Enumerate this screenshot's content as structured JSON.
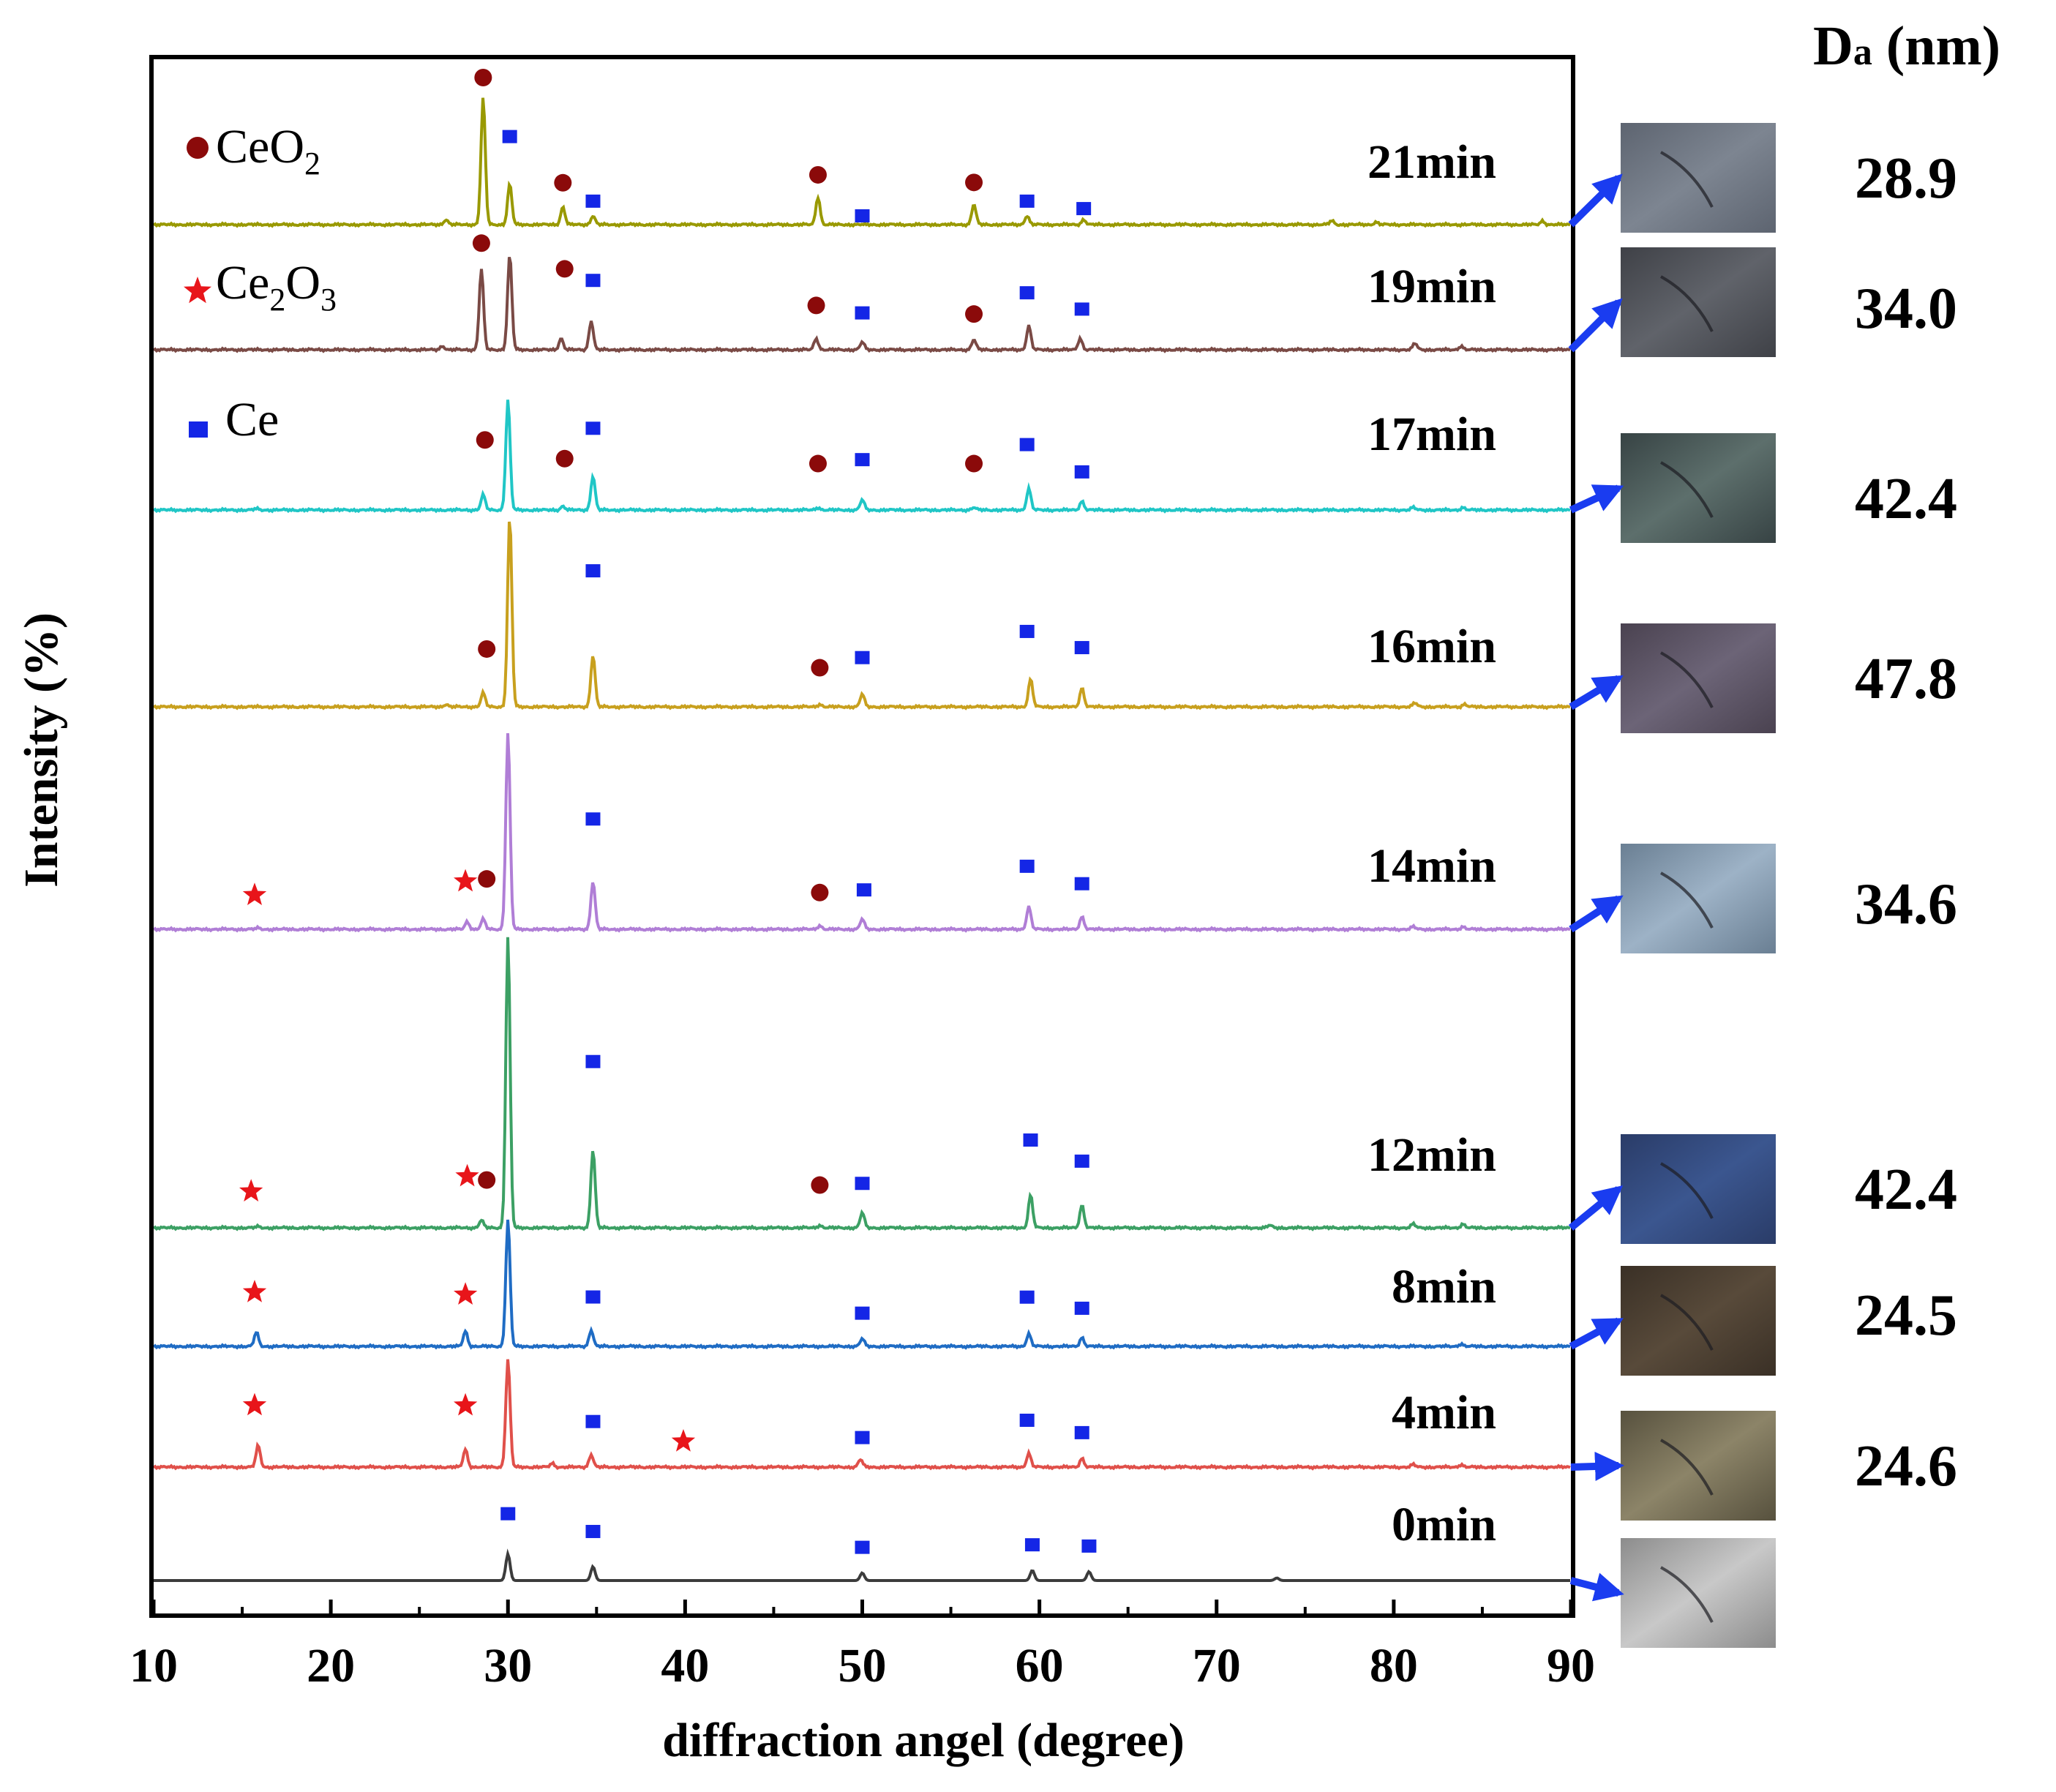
{
  "chart_data": {
    "type": "line",
    "xlabel": "diffraction angel (degree)",
    "ylabel": "Intensity (%)",
    "xlim": [
      10,
      90
    ],
    "xticks": [
      10,
      20,
      30,
      40,
      50,
      60,
      70,
      80,
      90
    ],
    "da_header": {
      "main": "D",
      "sub": "a",
      "unit": " (nm)"
    },
    "legend": [
      {
        "label": "CeO",
        "sub": "2",
        "marker": "circle",
        "color": "#8b0a0a"
      },
      {
        "label": "Ce",
        "sub": "2",
        "label2": "O",
        "sub2": "3",
        "marker": "star",
        "color": "#e8151a"
      },
      {
        "label": "Ce",
        "marker": "square",
        "color": "#1426e6"
      }
    ],
    "series": [
      {
        "name": "21min",
        "color": "#999900",
        "da": "28.9",
        "swatch": [
          "#5d6470",
          "#7d8591"
        ],
        "peaks": [
          [
            26.5,
            0.04
          ],
          [
            28.6,
            1.0
          ],
          [
            30.1,
            0.32
          ],
          [
            33.1,
            0.14
          ],
          [
            34.8,
            0.07
          ],
          [
            47.5,
            0.22
          ],
          [
            56.3,
            0.16
          ],
          [
            59.3,
            0.07
          ],
          [
            62.5,
            0.04
          ],
          [
            76.5,
            0.03
          ],
          [
            79.0,
            0.02
          ],
          [
            88.4,
            0.03
          ]
        ],
        "markers": [
          [
            "circle",
            28.6
          ],
          [
            "square",
            30.1
          ],
          [
            "circle",
            33.1
          ],
          [
            "square",
            34.8
          ],
          [
            "circle",
            47.5
          ],
          [
            "square",
            50.0
          ],
          [
            "circle",
            56.3
          ],
          [
            "square",
            59.3
          ],
          [
            "square",
            62.5
          ]
        ]
      },
      {
        "name": "19min",
        "color": "#7a4a45",
        "da": "34.0",
        "swatch": [
          "#3f4147",
          "#60636a"
        ],
        "peaks": [
          [
            26.3,
            0.03
          ],
          [
            28.5,
            0.64
          ],
          [
            30.1,
            0.75
          ],
          [
            33.0,
            0.09
          ],
          [
            34.7,
            0.23
          ],
          [
            47.4,
            0.09
          ],
          [
            50.0,
            0.06
          ],
          [
            56.3,
            0.08
          ],
          [
            59.4,
            0.19
          ],
          [
            62.3,
            0.09
          ],
          [
            81.2,
            0.05
          ],
          [
            83.8,
            0.03
          ]
        ],
        "markers": [
          [
            "circle",
            28.5
          ],
          [
            "circle",
            33.2
          ],
          [
            "square",
            34.8
          ],
          [
            "circle",
            47.4
          ],
          [
            "square",
            50.0
          ],
          [
            "circle",
            56.3
          ],
          [
            "square",
            59.3
          ],
          [
            "square",
            62.4
          ]
        ]
      },
      {
        "name": "17min",
        "color": "#20c6c6",
        "da": "42.4",
        "swatch": [
          "#374344",
          "#5d6f6c"
        ],
        "peaks": [
          [
            15.8,
            0.01
          ],
          [
            28.6,
            0.12
          ],
          [
            30.0,
            0.87
          ],
          [
            33.1,
            0.03
          ],
          [
            34.8,
            0.27
          ],
          [
            47.5,
            0.02
          ],
          [
            50.0,
            0.08
          ],
          [
            56.3,
            0.02
          ],
          [
            59.4,
            0.17
          ],
          [
            62.4,
            0.07
          ],
          [
            81.1,
            0.02
          ],
          [
            83.9,
            0.02
          ]
        ],
        "markers": [
          [
            "circle",
            28.7
          ],
          [
            "circle",
            33.2
          ],
          [
            "square",
            34.8
          ],
          [
            "circle",
            47.5
          ],
          [
            "square",
            50.0
          ],
          [
            "circle",
            56.3
          ],
          [
            "square",
            59.3
          ],
          [
            "square",
            62.4
          ]
        ]
      },
      {
        "name": "16min",
        "color": "#c8a01e",
        "da": "47.8",
        "swatch": [
          "#4a4250",
          "#6c6477"
        ],
        "peaks": [
          [
            26.5,
            0.02
          ],
          [
            28.6,
            0.11
          ],
          [
            30.1,
            1.5
          ],
          [
            34.8,
            0.41
          ],
          [
            47.6,
            0.02
          ],
          [
            50.0,
            0.1
          ],
          [
            59.5,
            0.22
          ],
          [
            62.4,
            0.15
          ],
          [
            81.2,
            0.03
          ],
          [
            84.0,
            0.02
          ]
        ],
        "markers": [
          [
            "circle",
            28.8
          ],
          [
            "square",
            34.8
          ],
          [
            "circle",
            47.6
          ],
          [
            "square",
            50.0
          ],
          [
            "square",
            59.3
          ],
          [
            "square",
            62.4
          ]
        ]
      },
      {
        "name": "14min",
        "color": "#b07ed6",
        "da": "34.6",
        "swatch": [
          "#6a7f93",
          "#9db2c6"
        ],
        "peaks": [
          [
            15.9,
            0.01
          ],
          [
            27.7,
            0.06
          ],
          [
            28.6,
            0.08
          ],
          [
            30.0,
            1.55
          ],
          [
            34.8,
            0.38
          ],
          [
            47.6,
            0.03
          ],
          [
            50.0,
            0.08
          ],
          [
            59.4,
            0.18
          ],
          [
            62.4,
            0.1
          ],
          [
            81.1,
            0.02
          ],
          [
            83.9,
            0.02
          ]
        ],
        "markers": [
          [
            "star",
            15.7
          ],
          [
            "star",
            27.6
          ],
          [
            "circle",
            28.8
          ],
          [
            "square",
            34.8
          ],
          [
            "circle",
            47.6
          ],
          [
            "square",
            50.1
          ],
          [
            "square",
            59.3
          ],
          [
            "square",
            62.4
          ]
        ]
      },
      {
        "name": "12min",
        "color": "#3ca064",
        "da": "42.4",
        "swatch": [
          "#2a3c68",
          "#3b568f"
        ],
        "peaks": [
          [
            15.9,
            0.01
          ],
          [
            28.5,
            0.06
          ],
          [
            30.0,
            2.3
          ],
          [
            34.8,
            0.62
          ],
          [
            47.6,
            0.02
          ],
          [
            50.0,
            0.12
          ],
          [
            59.5,
            0.26
          ],
          [
            62.4,
            0.18
          ],
          [
            73.0,
            0.02
          ],
          [
            81.1,
            0.03
          ],
          [
            83.9,
            0.03
          ]
        ],
        "markers": [
          [
            "star",
            15.5
          ],
          [
            "star",
            27.7
          ],
          [
            "circle",
            28.8
          ],
          [
            "square",
            34.8
          ],
          [
            "circle",
            47.6
          ],
          [
            "square",
            50.0
          ],
          [
            "square",
            59.5
          ],
          [
            "square",
            62.4
          ]
        ]
      },
      {
        "name": "8min",
        "color": "#1f6cc4",
        "da": "24.5",
        "swatch": [
          "#3a3026",
          "#584a3a"
        ],
        "peaks": [
          [
            15.8,
            0.11
          ],
          [
            27.6,
            0.12
          ],
          [
            30.0,
            1.0
          ],
          [
            34.7,
            0.13
          ],
          [
            50.0,
            0.06
          ],
          [
            59.4,
            0.1
          ],
          [
            62.4,
            0.07
          ],
          [
            83.8,
            0.02
          ]
        ],
        "markers": [
          [
            "star",
            15.7
          ],
          [
            "star",
            27.6
          ],
          [
            "square",
            34.8
          ],
          [
            "square",
            50.0
          ],
          [
            "square",
            59.3
          ],
          [
            "square",
            62.4
          ]
        ]
      },
      {
        "name": "4min",
        "color": "#e0504a",
        "da": "24.6",
        "swatch": [
          "#57513e",
          "#8c8468"
        ],
        "peaks": [
          [
            15.9,
            0.17
          ],
          [
            27.6,
            0.14
          ],
          [
            30.0,
            0.85
          ],
          [
            32.5,
            0.03
          ],
          [
            34.7,
            0.1
          ],
          [
            49.9,
            0.06
          ],
          [
            59.4,
            0.11
          ],
          [
            62.4,
            0.07
          ],
          [
            81.1,
            0.02
          ],
          [
            83.8,
            0.02
          ]
        ],
        "markers": [
          [
            "star",
            15.7
          ],
          [
            "star",
            27.6
          ],
          [
            "square",
            34.8
          ],
          [
            "star",
            39.9
          ],
          [
            "square",
            50.0
          ],
          [
            "square",
            59.3
          ],
          [
            "square",
            62.4
          ]
        ]
      },
      {
        "name": "0min",
        "color": "#3c3c3c",
        "da": "",
        "swatch": [
          "#8c8c8c",
          "#c8c8c8"
        ],
        "peaks": [
          [
            30.0,
            0.21
          ],
          [
            34.8,
            0.11
          ],
          [
            50.0,
            0.06
          ],
          [
            59.6,
            0.08
          ],
          [
            62.8,
            0.07
          ],
          [
            73.4,
            0.02
          ]
        ],
        "markers": [
          [
            "square",
            30.0
          ],
          [
            "square",
            34.8
          ],
          [
            "square",
            50.0
          ],
          [
            "square",
            59.6
          ],
          [
            "square",
            62.8
          ]
        ]
      }
    ]
  }
}
